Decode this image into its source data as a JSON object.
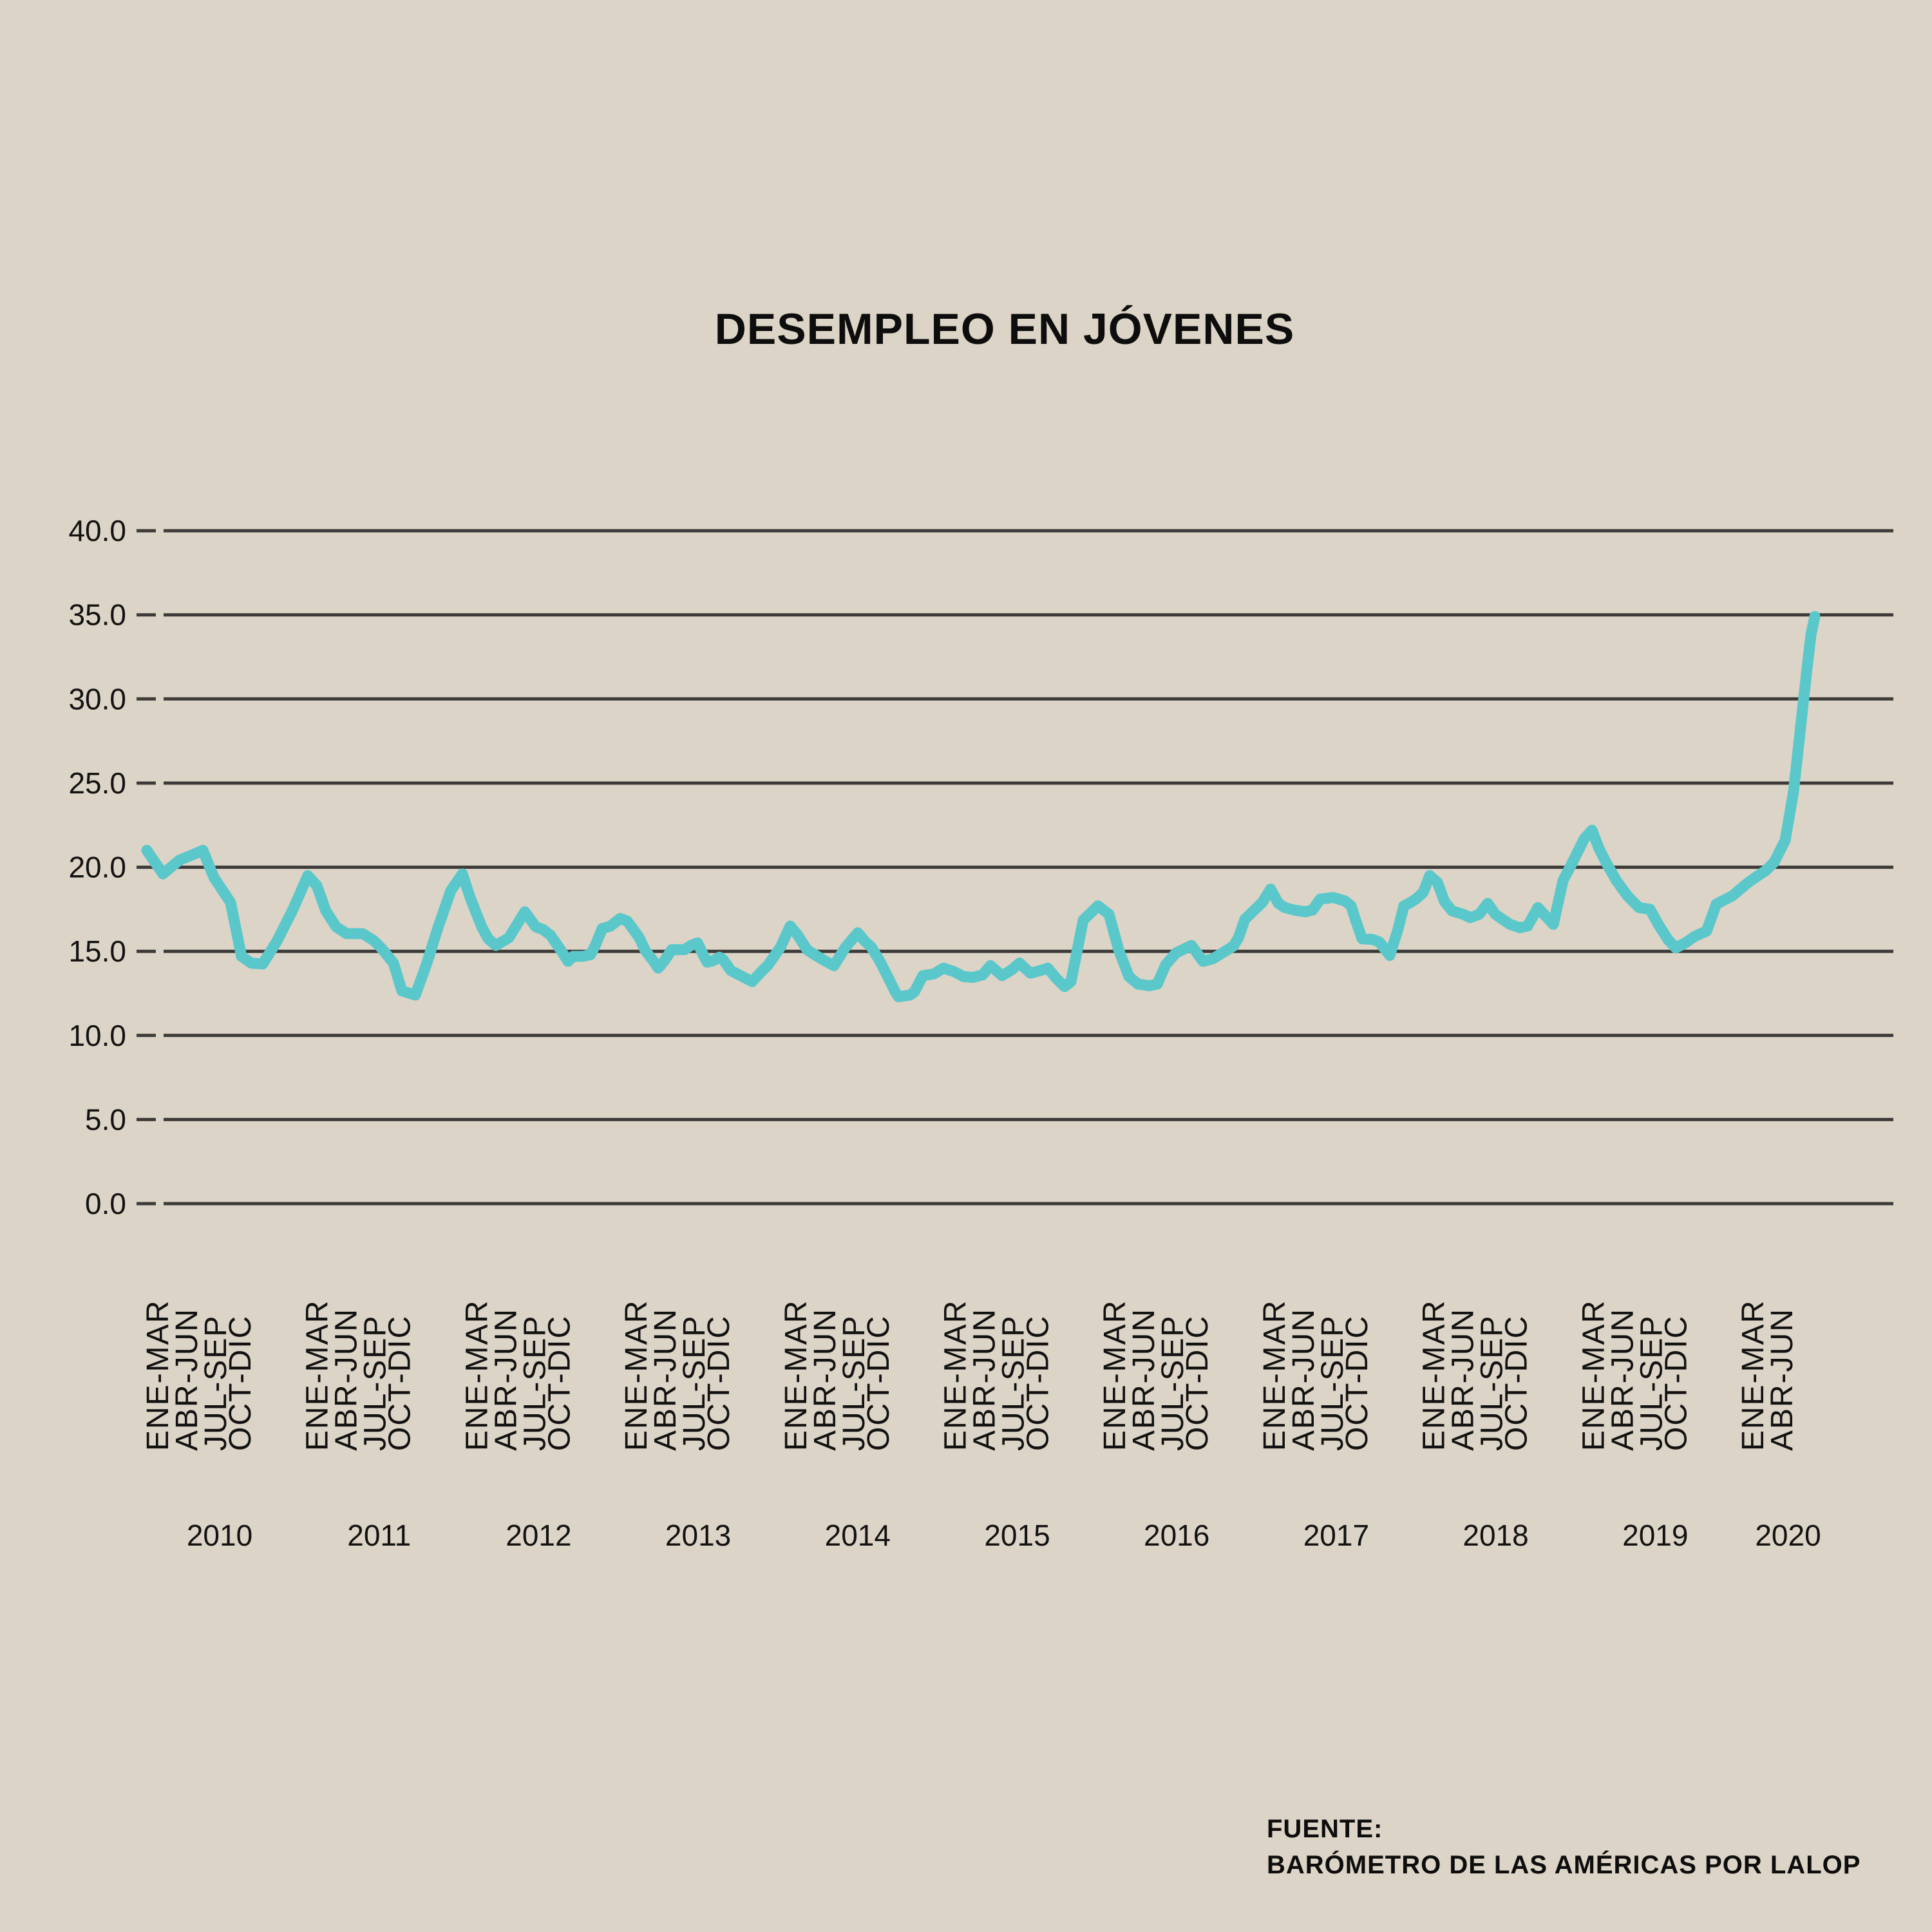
{
  "title": "DESEMPLEO EN JÓVENES",
  "source": {
    "label": "FUENTE:",
    "text": "BARÓMETRO DE LAS AMÉRICAS POR LALOP"
  },
  "colors": {
    "background": "#DCD4C6",
    "line": "#5AC7CB",
    "grid": "#3C3B39",
    "text": "#121212"
  },
  "chart_data": {
    "type": "line",
    "title": "DESEMPLEO EN JÓVENES",
    "xlabel": "",
    "ylabel": "",
    "ylim": [
      0,
      40
    ],
    "grid": "horizontal",
    "legend": "none",
    "series_name": "Desempleo en jóvenes (%)",
    "yticks": [
      {
        "value": 0,
        "label": "0.0"
      },
      {
        "value": 5,
        "label": "5.0"
      },
      {
        "value": 10,
        "label": "10.0"
      },
      {
        "value": 15,
        "label": "15.0"
      },
      {
        "value": 20,
        "label": "20.0"
      },
      {
        "value": 25,
        "label": "25.0"
      },
      {
        "value": 30,
        "label": "30.0"
      },
      {
        "value": 35,
        "label": "35.0"
      },
      {
        "value": 40,
        "label": "40.0"
      }
    ],
    "x_axis": {
      "years": [
        {
          "year": "2010",
          "quarters": [
            "ENE-MAR",
            "ABR-JUN",
            "JUL-SEP",
            "OCT-DIC"
          ]
        },
        {
          "year": "2011",
          "quarters": [
            "ENE-MAR",
            "ABR-JUN",
            "JUL-SEP",
            "OCT-DIC"
          ]
        },
        {
          "year": "2012",
          "quarters": [
            "ENE-MAR",
            "ABR-JUN",
            "JUL-SEP",
            "OCT-DIC"
          ]
        },
        {
          "year": "2013",
          "quarters": [
            "ENE-MAR",
            "ABR-JUN",
            "JUL-SEP",
            "OCT-DIC"
          ]
        },
        {
          "year": "2014",
          "quarters": [
            "ENE-MAR",
            "ABR-JUN",
            "JUL-SEP",
            "OCT-DIC"
          ]
        },
        {
          "year": "2015",
          "quarters": [
            "ENE-MAR",
            "ABR-JUN",
            "JUL-SEP",
            "OCT-DIC"
          ]
        },
        {
          "year": "2016",
          "quarters": [
            "ENE-MAR",
            "ABR-JUN",
            "JUL-SEP",
            "OCT-DIC"
          ]
        },
        {
          "year": "2017",
          "quarters": [
            "ENE-MAR",
            "ABR-JUN",
            "JUL-SEP",
            "OCT-DIC"
          ]
        },
        {
          "year": "2018",
          "quarters": [
            "ENE-MAR",
            "ABR-JUN",
            "JUL-SEP",
            "OCT-DIC"
          ]
        },
        {
          "year": "2019",
          "quarters": [
            "ENE-MAR",
            "ABR-JUN",
            "JUL-SEP",
            "OCT-DIC"
          ]
        },
        {
          "year": "2020",
          "quarters": [
            "ENE-MAR",
            "ABR-JUN"
          ]
        }
      ]
    },
    "quarterly_values": [
      {
        "year": "2010",
        "values": [
          21.0,
          20.3,
          21.1,
          17.7
        ]
      },
      {
        "year": "2011",
        "values": [
          19.5,
          16.4,
          16.1,
          14.3
        ]
      },
      {
        "year": "2012",
        "values": [
          19.6,
          15.4,
          17.4,
          15.9
        ]
      },
      {
        "year": "2013",
        "values": [
          16.9,
          14.4,
          15.1,
          14.5
        ]
      },
      {
        "year": "2014",
        "values": [
          16.5,
          14.8,
          15.1,
          15.2
        ]
      },
      {
        "year": "2015",
        "values": [
          14.0,
          13.5,
          13.6,
          13.7
        ]
      },
      {
        "year": "2016",
        "values": [
          17.7,
          13.2,
          14.1,
          15.3
        ]
      },
      {
        "year": "2017",
        "values": [
          18.7,
          17.5,
          18.2,
          17.8
        ]
      },
      {
        "year": "2018",
        "values": [
          19.5,
          17.4,
          17.9,
          16.4
        ]
      },
      {
        "year": "2019",
        "values": [
          22.2,
          19.2,
          16.5,
          15.2
        ]
      },
      {
        "year": "2020",
        "values": [
          19.2,
          20.5
        ]
      }
    ],
    "trace_units": "x in source-image pixels (monthly moving-quarter series), y in percent",
    "trace": [
      [
        228,
        21.0
      ],
      [
        253,
        19.6
      ],
      [
        278,
        20.4
      ],
      [
        315,
        21.0
      ],
      [
        332,
        19.4
      ],
      [
        358,
        17.9
      ],
      [
        375,
        14.7
      ],
      [
        390,
        14.3
      ],
      [
        408,
        14.25
      ],
      [
        430,
        15.6
      ],
      [
        455,
        17.5
      ],
      [
        478,
        19.5
      ],
      [
        492,
        18.9
      ],
      [
        506,
        17.4
      ],
      [
        522,
        16.45
      ],
      [
        538,
        16.05
      ],
      [
        563,
        16.05
      ],
      [
        580,
        15.65
      ],
      [
        592,
        15.2
      ],
      [
        611,
        14.3
      ],
      [
        624,
        12.65
      ],
      [
        645,
        12.4
      ],
      [
        662,
        14.2
      ],
      [
        680,
        16.4
      ],
      [
        700,
        18.6
      ],
      [
        718,
        19.6
      ],
      [
        730,
        18.2
      ],
      [
        748,
        16.45
      ],
      [
        758,
        15.75
      ],
      [
        770,
        15.35
      ],
      [
        790,
        15.8
      ],
      [
        815,
        17.35
      ],
      [
        832,
        16.45
      ],
      [
        843,
        16.3
      ],
      [
        855,
        15.95
      ],
      [
        872,
        15.0
      ],
      [
        882,
        14.4
      ],
      [
        890,
        14.7
      ],
      [
        905,
        14.7
      ],
      [
        917,
        14.8
      ],
      [
        925,
        15.4
      ],
      [
        935,
        16.35
      ],
      [
        948,
        16.5
      ],
      [
        963,
        16.95
      ],
      [
        974,
        16.8
      ],
      [
        992,
        15.85
      ],
      [
        1002,
        15.05
      ],
      [
        1015,
        14.4
      ],
      [
        1022,
        14.0
      ],
      [
        1032,
        14.45
      ],
      [
        1043,
        15.1
      ],
      [
        1063,
        15.1
      ],
      [
        1073,
        15.35
      ],
      [
        1083,
        15.5
      ],
      [
        1090,
        14.95
      ],
      [
        1098,
        14.35
      ],
      [
        1108,
        14.45
      ],
      [
        1117,
        14.65
      ],
      [
        1123,
        14.5
      ],
      [
        1135,
        13.85
      ],
      [
        1150,
        13.55
      ],
      [
        1168,
        13.2
      ],
      [
        1180,
        13.7
      ],
      [
        1193,
        14.2
      ],
      [
        1212,
        15.25
      ],
      [
        1227,
        16.5
      ],
      [
        1238,
        16.0
      ],
      [
        1253,
        15.1
      ],
      [
        1267,
        14.75
      ],
      [
        1280,
        14.45
      ],
      [
        1295,
        14.15
      ],
      [
        1313,
        15.25
      ],
      [
        1332,
        16.1
      ],
      [
        1343,
        15.6
      ],
      [
        1353,
        15.25
      ],
      [
        1367,
        14.35
      ],
      [
        1377,
        13.6
      ],
      [
        1390,
        12.6
      ],
      [
        1395,
        12.3
      ],
      [
        1413,
        12.4
      ],
      [
        1420,
        12.6
      ],
      [
        1433,
        13.55
      ],
      [
        1450,
        13.65
      ],
      [
        1465,
        14.0
      ],
      [
        1481,
        13.8
      ],
      [
        1496,
        13.5
      ],
      [
        1511,
        13.45
      ],
      [
        1526,
        13.6
      ],
      [
        1538,
        14.15
      ],
      [
        1556,
        13.55
      ],
      [
        1571,
        13.9
      ],
      [
        1583,
        14.3
      ],
      [
        1600,
        13.7
      ],
      [
        1615,
        13.85
      ],
      [
        1627,
        14.0
      ],
      [
        1640,
        13.4
      ],
      [
        1653,
        12.9
      ],
      [
        1663,
        13.2
      ],
      [
        1682,
        16.85
      ],
      [
        1705,
        17.7
      ],
      [
        1722,
        17.2
      ],
      [
        1737,
        15.1
      ],
      [
        1753,
        13.5
      ],
      [
        1767,
        13.05
      ],
      [
        1785,
        12.95
      ],
      [
        1797,
        13.05
      ],
      [
        1810,
        14.2
      ],
      [
        1826,
        14.9
      ],
      [
        1850,
        15.35
      ],
      [
        1868,
        14.4
      ],
      [
        1883,
        14.55
      ],
      [
        1900,
        14.95
      ],
      [
        1915,
        15.3
      ],
      [
        1923,
        15.8
      ],
      [
        1933,
        16.9
      ],
      [
        1945,
        17.35
      ],
      [
        1960,
        17.9
      ],
      [
        1973,
        18.7
      ],
      [
        1985,
        17.85
      ],
      [
        1995,
        17.6
      ],
      [
        2010,
        17.45
      ],
      [
        2027,
        17.35
      ],
      [
        2038,
        17.45
      ],
      [
        2050,
        18.1
      ],
      [
        2070,
        18.2
      ],
      [
        2088,
        18.0
      ],
      [
        2098,
        17.7
      ],
      [
        2105,
        16.85
      ],
      [
        2115,
        15.75
      ],
      [
        2132,
        15.7
      ],
      [
        2142,
        15.55
      ],
      [
        2147,
        15.3
      ],
      [
        2158,
        14.75
      ],
      [
        2170,
        16.2
      ],
      [
        2180,
        17.7
      ],
      [
        2188,
        17.85
      ],
      [
        2200,
        18.15
      ],
      [
        2210,
        18.5
      ],
      [
        2220,
        19.5
      ],
      [
        2232,
        19.1
      ],
      [
        2243,
        17.95
      ],
      [
        2255,
        17.4
      ],
      [
        2272,
        17.2
      ],
      [
        2283,
        17.0
      ],
      [
        2297,
        17.2
      ],
      [
        2310,
        17.85
      ],
      [
        2322,
        17.2
      ],
      [
        2333,
        16.9
      ],
      [
        2345,
        16.6
      ],
      [
        2360,
        16.4
      ],
      [
        2372,
        16.5
      ],
      [
        2388,
        17.6
      ],
      [
        2400,
        17.1
      ],
      [
        2412,
        16.6
      ],
      [
        2427,
        19.2
      ],
      [
        2442,
        20.3
      ],
      [
        2460,
        21.7
      ],
      [
        2472,
        22.2
      ],
      [
        2483,
        21.1
      ],
      [
        2495,
        20.2
      ],
      [
        2510,
        19.2
      ],
      [
        2527,
        18.3
      ],
      [
        2545,
        17.6
      ],
      [
        2562,
        17.5
      ],
      [
        2575,
        16.6
      ],
      [
        2590,
        15.7
      ],
      [
        2602,
        15.2
      ],
      [
        2617,
        15.5
      ],
      [
        2632,
        15.9
      ],
      [
        2650,
        16.2
      ],
      [
        2665,
        17.8
      ],
      [
        2690,
        18.3
      ],
      [
        2715,
        19.1
      ],
      [
        2730,
        19.5
      ],
      [
        2742,
        19.8
      ],
      [
        2755,
        20.3
      ],
      [
        2772,
        21.6
      ],
      [
        2785,
        24.5
      ],
      [
        2795,
        28.0
      ],
      [
        2805,
        31.5
      ],
      [
        2812,
        33.8
      ],
      [
        2818,
        34.9
      ]
    ]
  }
}
